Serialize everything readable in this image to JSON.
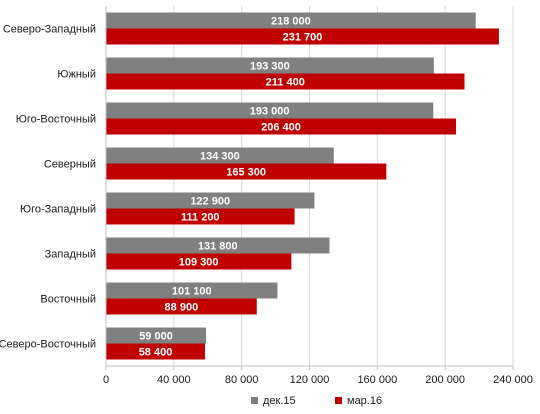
{
  "chart_data": {
    "type": "bar",
    "orientation": "horizontal",
    "title": "",
    "xlabel": "",
    "ylabel": "",
    "categories": [
      "Северо-Западный",
      "Южный",
      "Юго-Восточный",
      "Северный",
      "Юго-Западный",
      "Западный",
      "Восточный",
      "Северо-Восточный"
    ],
    "series": [
      {
        "name": "дек.15",
        "color": "#808080",
        "values": [
          218000,
          193300,
          193000,
          134300,
          122900,
          131800,
          101100,
          59000
        ],
        "labels": [
          "218 000",
          "193 300",
          "193 000",
          "134 300",
          "122 900",
          "131 800",
          "101 100",
          "59 000"
        ]
      },
      {
        "name": "мар.16",
        "color": "#c00000",
        "values": [
          231700,
          211400,
          206400,
          165300,
          111200,
          109300,
          88900,
          58400
        ],
        "labels": [
          "231 700",
          "211 400",
          "206 400",
          "165 300",
          "111 200",
          "109 300",
          "88 900",
          "58 400"
        ]
      }
    ],
    "xlim": [
      0,
      240000
    ],
    "xticks": [
      0,
      40000,
      80000,
      120000,
      160000,
      200000,
      240000
    ],
    "xtick_labels": [
      "0",
      "40 000",
      "80 000",
      "120 000",
      "160 000",
      "200 000",
      "240 000"
    ],
    "grid": true,
    "legend_position": "bottom"
  }
}
